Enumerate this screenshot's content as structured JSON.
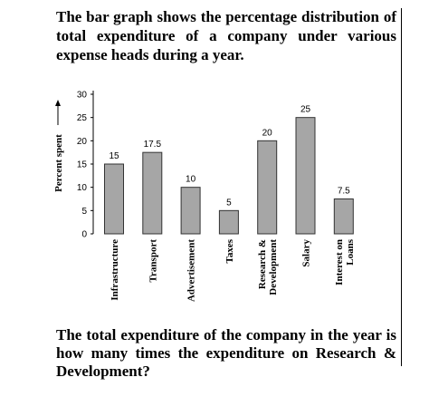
{
  "intro_text": "The bar graph shows the percentage distribution of total expenditure of a company under various expense heads during a year.",
  "question_text": "The total expenditure of the company in the year is how many times the expenditure on Research & Development?",
  "chart_data": {
    "type": "bar",
    "title": "",
    "ylabel": "Percent spent",
    "xlabel": "",
    "ylim": [
      0,
      30
    ],
    "yticks": [
      0,
      5,
      10,
      15,
      20,
      25,
      30
    ],
    "categories": [
      [
        "Infrastructure"
      ],
      [
        "Transport"
      ],
      [
        "Advertisement"
      ],
      [
        "Taxes"
      ],
      [
        "Research &",
        "Development"
      ],
      [
        "Salary"
      ],
      [
        "Interest on",
        "Loans"
      ]
    ],
    "values": [
      15,
      17.5,
      10,
      5,
      20,
      25,
      7.5
    ],
    "data_labels": [
      "15",
      "17.5",
      "10",
      "5",
      "20",
      "25",
      "7.5"
    ],
    "bar_color": "#a6a6a6",
    "grid": false
  }
}
